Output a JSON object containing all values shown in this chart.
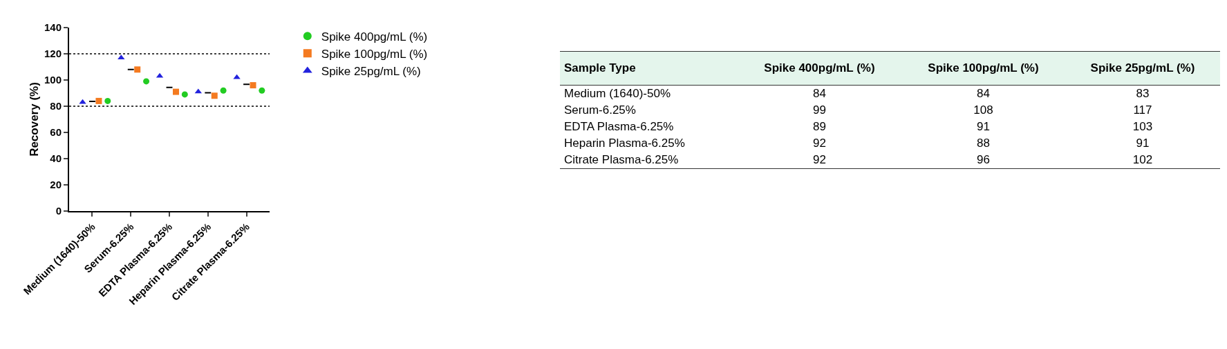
{
  "chart_data": [
    {
      "type": "scatter",
      "ylabel": "Recovery (%)",
      "categories": [
        "Medium (1640)-50%",
        "Serum-6.25%",
        "EDTA Plasma-6.25%",
        "Heparin Plasma-6.25%",
        "Citrate Plasma-6.25%"
      ],
      "series": [
        {
          "name": "Spike 400pg/mL (%)",
          "color": "#22cc22",
          "marker": "circle",
          "values": [
            84,
            99,
            89,
            92,
            92
          ]
        },
        {
          "name": "Spike 100pg/mL (%)",
          "color": "#f47a20",
          "marker": "square",
          "values": [
            84,
            108,
            91,
            88,
            96
          ]
        },
        {
          "name": "Spike 25pg/mL (%)",
          "color": "#2222dd",
          "marker": "triangle",
          "values": [
            83,
            117,
            103,
            91,
            102
          ]
        },
        {
          "type": "box",
          "color": "#000000",
          "boxes": [
            {
              "low": 83.7,
              "q1": 83.7,
              "median": 83.7,
              "q3": 83.7,
              "high": 83.7
            },
            {
              "low": 108,
              "q1": 108,
              "median": 108,
              "q3": 108,
              "high": 108
            },
            {
              "low": 94.3,
              "q1": 94.3,
              "median": 94.3,
              "q3": 94.3,
              "high": 94.3
            },
            {
              "low": 90.3,
              "q1": 90.3,
              "median": 90.3,
              "q3": 90.3,
              "high": 90.3
            },
            {
              "low": 96.7,
              "q1": 96.7,
              "median": 96.7,
              "q3": 96.7,
              "high": 96.7
            }
          ]
        }
      ],
      "ylim": [
        0,
        140
      ],
      "yticks": [
        0,
        20,
        40,
        60,
        80,
        100,
        120,
        140
      ],
      "ref_lines": [
        {
          "axis": "y",
          "value": 80,
          "line_style": "dotted",
          "color": "#000000"
        },
        {
          "axis": "y",
          "value": 120,
          "line_style": "dotted",
          "color": "#000000"
        }
      ],
      "grid": false,
      "legend": "top right"
    },
    {
      "type": "heatmap",
      "ylabel": "Sample Type",
      "data_labels": true,
      "categories": [
        "Spike 400pg/mL (%)",
        "Spike 100pg/mL (%)",
        "Spike 25pg/mL (%)"
      ],
      "y_categories": [
        "Medium (1640)-50%",
        "Serum-6.25%",
        "EDTA Plasma-6.25%",
        "Heparin Plasma-6.25%",
        "Citrate Plasma-6.25%"
      ],
      "cells": [
        [
          84,
          84,
          83
        ],
        [
          99,
          108,
          117
        ],
        [
          89,
          91,
          103
        ],
        [
          92,
          88,
          91
        ],
        [
          92,
          96,
          102
        ]
      ]
    }
  ]
}
